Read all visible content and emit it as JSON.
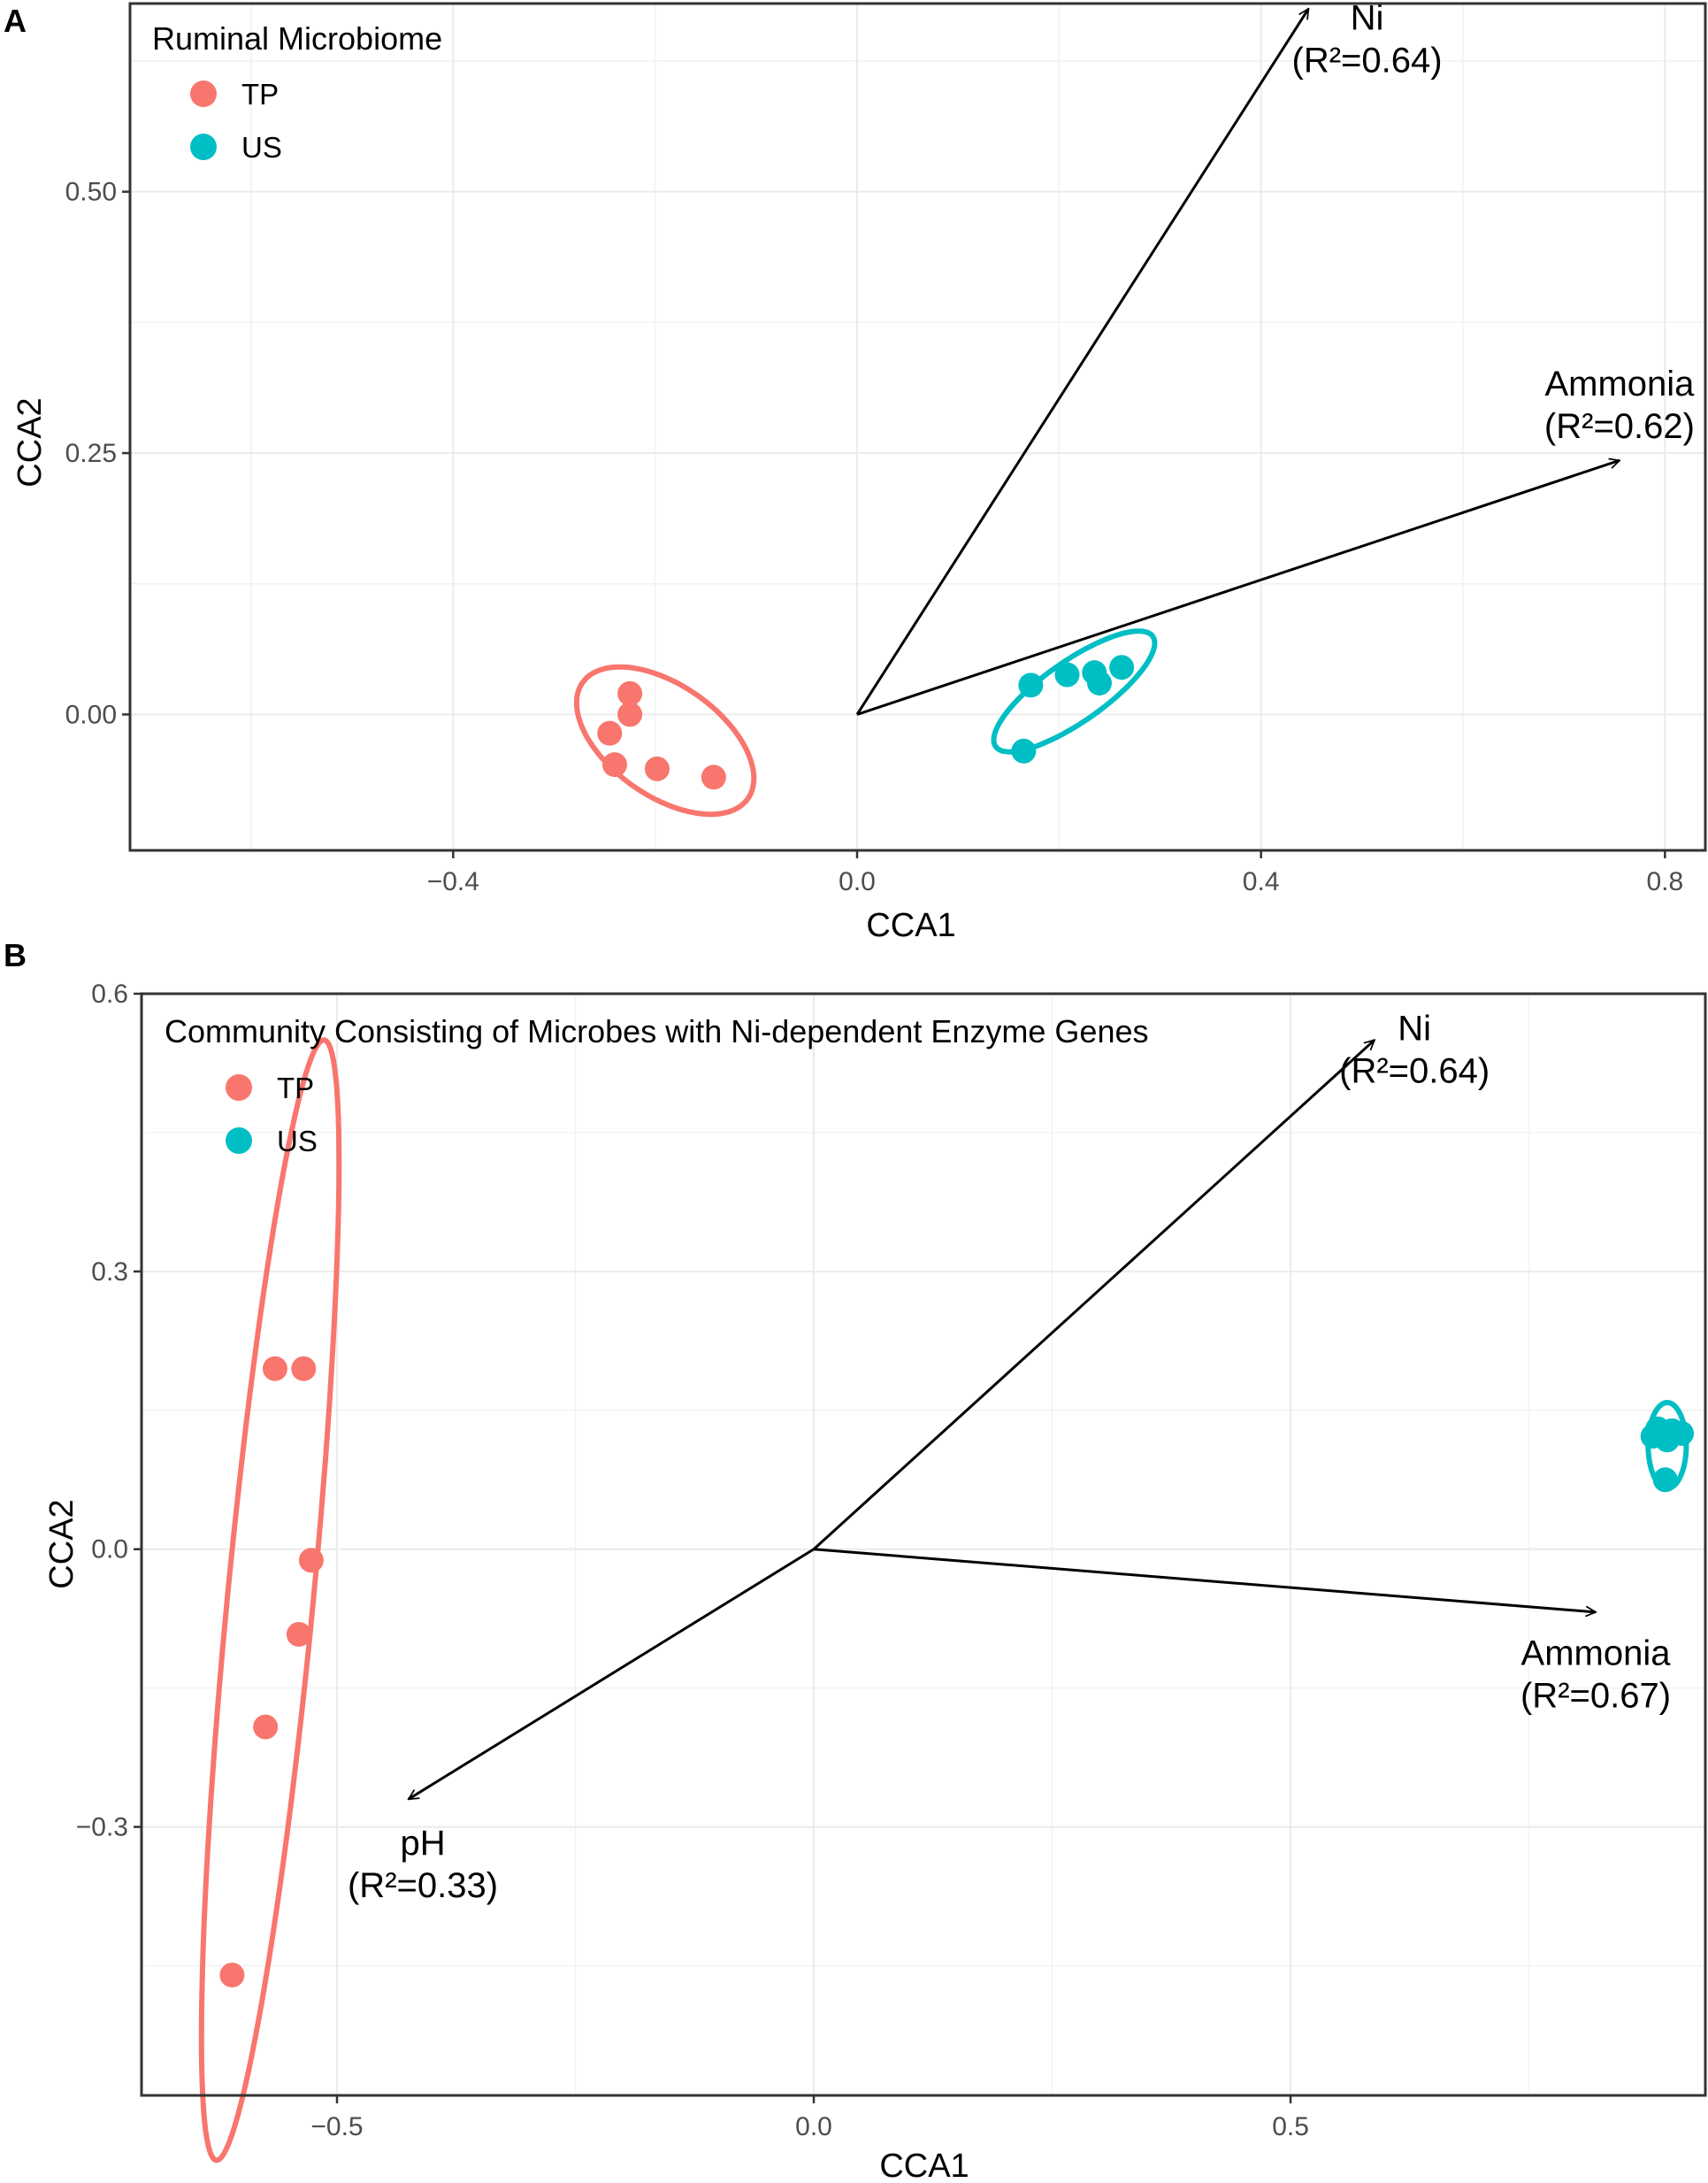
{
  "chart_data": [
    {
      "panel": "A",
      "type": "scatter",
      "legend": {
        "title": "Ruminal Microbiome",
        "position": "top-left"
      },
      "xlabel": "CCA1",
      "ylabel": "CCA2",
      "xlim": [
        -0.72,
        0.84
      ],
      "ylim": [
        -0.13,
        0.68
      ],
      "xticks": [
        -0.4,
        0.0,
        0.4,
        0.8
      ],
      "xtick_labels": [
        "−0.4",
        "0.0",
        "0.4",
        "0.8"
      ],
      "yticks": [
        0.0,
        0.25,
        0.5
      ],
      "ytick_labels": [
        "0.00",
        "0.25",
        "0.50"
      ],
      "xminor": [
        -0.6,
        -0.2,
        0.2,
        0.6
      ],
      "yminor": [
        0.125,
        0.375,
        0.625
      ],
      "series": [
        {
          "name": "TP",
          "color": "#F8766D",
          "points": [
            [
              -0.225,
              0.02
            ],
            [
              -0.225,
              0.0
            ],
            [
              -0.245,
              -0.018
            ],
            [
              -0.24,
              -0.048
            ],
            [
              -0.198,
              -0.052
            ],
            [
              -0.142,
              -0.06
            ]
          ],
          "ellipse": {
            "cx": -0.19,
            "cy": -0.025,
            "rx": 0.1,
            "ry": 0.055,
            "angle_deg": -35
          }
        },
        {
          "name": "US",
          "color": "#00BFC4",
          "points": [
            [
              0.172,
              0.028
            ],
            [
              0.208,
              0.038
            ],
            [
              0.235,
              0.04
            ],
            [
              0.24,
              0.03
            ],
            [
              0.262,
              0.045
            ],
            [
              0.165,
              -0.035
            ]
          ],
          "ellipse": {
            "cx": 0.215,
            "cy": 0.022,
            "rx": 0.095,
            "ry": 0.03,
            "angle_deg": 35
          }
        }
      ],
      "vectors": [
        {
          "name": "Ni",
          "r2": "(R²=0.64)",
          "x": 0.447,
          "y": 0.675,
          "label_x": 0.505,
          "label_y": 0.655
        },
        {
          "name": "Ammonia",
          "r2": "(R²=0.62)",
          "x": 0.755,
          "y": 0.243,
          "label_x": 0.755,
          "label_y": 0.305
        }
      ]
    },
    {
      "panel": "B",
      "type": "scatter",
      "legend": {
        "title": "Community Consisting of Microbes with Ni-dependent Enzyme Genes",
        "position": "top-left"
      },
      "xlabel": "CCA1",
      "ylabel": "CCA2",
      "xlim": [
        -0.705,
        0.935
      ],
      "ylim": [
        -0.59,
        0.6
      ],
      "xticks": [
        -0.5,
        0.0,
        0.5
      ],
      "xtick_labels": [
        "−0.5",
        "0.0",
        "0.5"
      ],
      "yticks": [
        -0.3,
        0.0,
        0.3,
        0.6
      ],
      "ytick_labels": [
        "−0.3",
        "0.0",
        "0.3",
        "0.6"
      ],
      "xminor": [
        -0.25,
        0.25,
        0.75
      ],
      "yminor": [
        -0.45,
        -0.15,
        0.15,
        0.45
      ],
      "series": [
        {
          "name": "TP",
          "color": "#F8766D",
          "points": [
            [
              -0.565,
              0.195
            ],
            [
              -0.535,
              0.195
            ],
            [
              -0.527,
              -0.012
            ],
            [
              -0.54,
              -0.092
            ],
            [
              -0.575,
              -0.192
            ],
            [
              -0.61,
              -0.46
            ]
          ],
          "ellipse": {
            "cx": -0.57,
            "cy": -0.055,
            "rx": 0.59,
            "ry": 0.045,
            "angle_deg": 84.5
          }
        },
        {
          "name": "US",
          "color": "#00BFC4",
          "points": [
            [
              0.885,
              0.13
            ],
            [
              0.9,
              0.128
            ],
            [
              0.91,
              0.125
            ],
            [
              0.88,
              0.122
            ],
            [
              0.895,
              0.118
            ],
            [
              0.893,
              0.075
            ]
          ],
          "ellipse": {
            "cx": 0.895,
            "cy": 0.112,
            "rx": 0.02,
            "ry": 0.045,
            "angle_deg": 0
          }
        }
      ],
      "vectors": [
        {
          "name": "Ni",
          "r2": "(R²=0.64)",
          "x": 0.588,
          "y": 0.55,
          "label_x": 0.63,
          "label_y": 0.55
        },
        {
          "name": "Ammonia",
          "r2": "(R²=0.67)",
          "x": 0.82,
          "y": -0.068,
          "label_x": 0.82,
          "label_y": -0.125
        },
        {
          "name": "pH",
          "r2": "(R²=0.33)",
          "x": -0.425,
          "y": -0.27,
          "label_x": -0.41,
          "label_y": -0.33
        }
      ]
    }
  ]
}
